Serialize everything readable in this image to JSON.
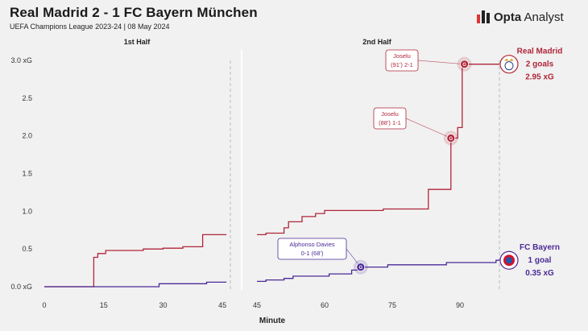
{
  "header": {
    "title": "Real Madrid 2 - 1 FC Bayern München",
    "subtitle": "UEFA Champions League 2023-24 | 08 May 2024",
    "brand_name": "Opta",
    "brand_suffix": "Analyst"
  },
  "chart_data": {
    "type": "line",
    "step": true,
    "panels": [
      {
        "label": "1st Half",
        "xlim": [
          0,
          47
        ],
        "xticks": [
          0,
          15,
          30,
          45
        ]
      },
      {
        "label": "2nd Half",
        "xlim": [
          45,
          100
        ],
        "xticks": [
          45,
          60,
          75,
          90
        ]
      }
    ],
    "xlabel": "Minute",
    "ylabel": "",
    "ylim": [
      0,
      3.0
    ],
    "yticks": [
      {
        "value": 0,
        "label": "0.0 xG"
      },
      {
        "value": 0.5,
        "label": "0.5"
      },
      {
        "value": 1.0,
        "label": "1.0"
      },
      {
        "value": 1.5,
        "label": "1.5"
      },
      {
        "value": 2.0,
        "label": "2.0"
      },
      {
        "value": 2.5,
        "label": "2.5"
      },
      {
        "value": 3.0,
        "label": "3.0 xG"
      }
    ],
    "series": [
      {
        "name": "Real Madrid",
        "color": "#b0263a",
        "goals_text": "2 goals",
        "xg_text": "2.95 xG",
        "half1": [
          [
            0,
            0
          ],
          [
            12.5,
            0
          ],
          [
            12.5,
            0.39
          ],
          [
            13.5,
            0.39
          ],
          [
            13.5,
            0.44
          ],
          [
            15.5,
            0.44
          ],
          [
            15.5,
            0.48
          ],
          [
            25,
            0.48
          ],
          [
            25,
            0.5
          ],
          [
            30,
            0.5
          ],
          [
            30,
            0.51
          ],
          [
            35,
            0.51
          ],
          [
            35,
            0.53
          ],
          [
            40,
            0.53
          ],
          [
            40,
            0.69
          ],
          [
            46,
            0.69
          ]
        ],
        "half2": [
          [
            45,
            0.69
          ],
          [
            47,
            0.69
          ],
          [
            47,
            0.71
          ],
          [
            51,
            0.71
          ],
          [
            51,
            0.78
          ],
          [
            52,
            0.78
          ],
          [
            52,
            0.86
          ],
          [
            55,
            0.86
          ],
          [
            55,
            0.93
          ],
          [
            58,
            0.93
          ],
          [
            58,
            0.97
          ],
          [
            60,
            0.97
          ],
          [
            60,
            1.01
          ],
          [
            73,
            1.01
          ],
          [
            73,
            1.03
          ],
          [
            83,
            1.03
          ],
          [
            83,
            1.29
          ],
          [
            88,
            1.29
          ],
          [
            88,
            1.97
          ],
          [
            89.5,
            1.97
          ],
          [
            89.5,
            2.11
          ],
          [
            90.5,
            2.11
          ],
          [
            90.5,
            2.95
          ],
          [
            105,
            2.95
          ]
        ]
      },
      {
        "name": "FC Bayern",
        "color": "#4b2a96",
        "goals_text": "1 goal",
        "xg_text": "0.35 xG",
        "half1": [
          [
            0,
            0
          ],
          [
            29,
            0
          ],
          [
            29,
            0.04
          ],
          [
            41,
            0.04
          ],
          [
            41,
            0.06
          ],
          [
            46,
            0.06
          ]
        ],
        "half2": [
          [
            45,
            0.07
          ],
          [
            47,
            0.07
          ],
          [
            47,
            0.09
          ],
          [
            51,
            0.09
          ],
          [
            51,
            0.11
          ],
          [
            53,
            0.11
          ],
          [
            53,
            0.14
          ],
          [
            61,
            0.14
          ],
          [
            61,
            0.17
          ],
          [
            66,
            0.17
          ],
          [
            66,
            0.22
          ],
          [
            68,
            0.22
          ],
          [
            68,
            0.26
          ],
          [
            74,
            0.26
          ],
          [
            74,
            0.29
          ],
          [
            87,
            0.29
          ],
          [
            87,
            0.32
          ],
          [
            98,
            0.32
          ],
          [
            98,
            0.35
          ],
          [
            105,
            0.35
          ]
        ]
      }
    ],
    "goals": [
      {
        "team": "Real Madrid",
        "minute": 88,
        "xg": 1.97,
        "player": "Joselu",
        "detail": "(88') 1-1"
      },
      {
        "team": "Real Madrid",
        "minute": 91,
        "xg": 2.95,
        "player": "Joselu",
        "detail": "(91') 2-1"
      },
      {
        "team": "FC Bayern",
        "minute": 68,
        "xg": 0.26,
        "player": "Alphonso Davies",
        "detail": "0-1 (68')"
      }
    ],
    "goal_marker_letter": "G",
    "legend_position": "right",
    "grid": false
  }
}
